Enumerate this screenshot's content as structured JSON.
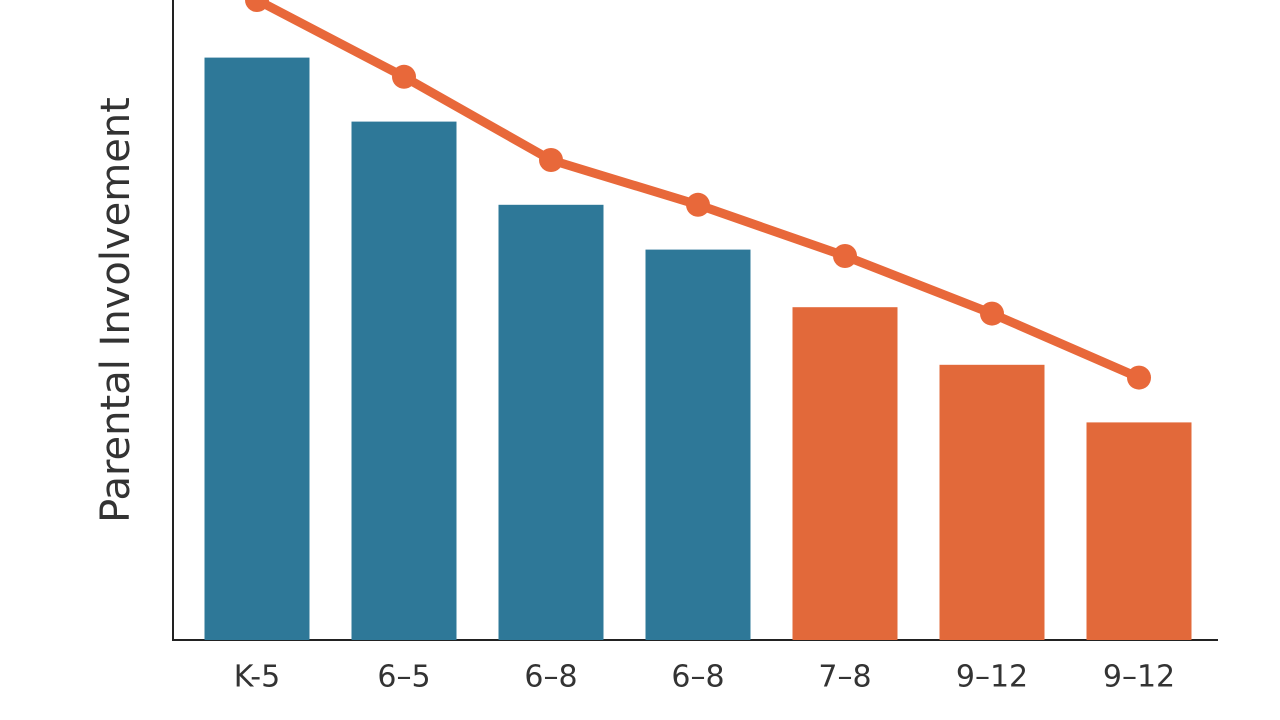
{
  "chart_data": {
    "type": "bar",
    "y_label": "Parental Involvement",
    "categories": [
      "K-5",
      "6–5",
      "6–8",
      "6–8",
      "7–8",
      "9–12",
      "9–12"
    ],
    "series": [
      {
        "type": "bar",
        "colors": [
          "#2e7898",
          "#2e7898",
          "#2e7898",
          "#2e7898",
          "#e2693a",
          "#e2693a",
          "#e2693a"
        ],
        "values": [
          91,
          81,
          68,
          61,
          52,
          43,
          34
        ]
      },
      {
        "type": "line",
        "color": "#e8683a",
        "values": [
          100,
          88,
          75,
          68,
          60,
          51,
          41
        ]
      }
    ],
    "ylim": [
      0,
      100
    ]
  }
}
